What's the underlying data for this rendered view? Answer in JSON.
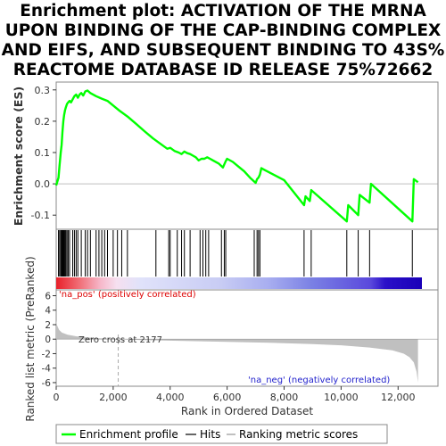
{
  "title_lines": [
    "Enrichment plot: ACTIVATION OF THE MRNA",
    "UPON BINDING OF THE CAP-BINDING COMPLEX",
    "AND EIFS, AND SUBSEQUENT BINDING TO 43S%",
    "REACTOME DATABASE ID RELEASE 75%72662"
  ],
  "colors": {
    "profile": "#00ff00",
    "hits": "#000000",
    "metric_fill": "#c0c0c0",
    "pos_label": "#dd0000",
    "neg_label": "#2222cc"
  },
  "chart_data": {
    "type": "line",
    "xlabel": "Rank in Ordered Dataset",
    "xlim": [
      0,
      13400
    ],
    "x_ticks": [
      0,
      2000,
      4000,
      6000,
      8000,
      10000,
      12000
    ],
    "x_tick_labels": [
      "0",
      "2,000",
      "4,000",
      "6,000",
      "8,000",
      "10,000",
      "12,000"
    ],
    "es_panel": {
      "ylabel": "Enrichment score (ES)",
      "ylim": [
        -0.145,
        0.325
      ],
      "y_ticks": [
        -0.1,
        0.0,
        0.1,
        0.2,
        0.3
      ],
      "y_tick_labels": [
        "-0.1",
        "0.0",
        "0.1",
        "0.2",
        "0.3"
      ],
      "series": [
        {
          "name": "Enrichment profile",
          "x": [
            0,
            80,
            120,
            160,
            190,
            220,
            250,
            280,
            310,
            340,
            380,
            420,
            470,
            520,
            580,
            640,
            700,
            760,
            820,
            880,
            950,
            1020,
            1100,
            1200,
            1400,
            1600,
            1800,
            2000,
            2200,
            2500,
            2800,
            3100,
            3400,
            3700,
            3900,
            4000,
            4150,
            4300,
            4400,
            4500,
            4600,
            4700,
            4800,
            4900,
            5000,
            5100,
            5200,
            5300,
            5400,
            5500,
            5700,
            5850,
            5950,
            6000,
            6200,
            6400,
            6600,
            6800,
            7000,
            7050,
            7100,
            7150,
            7200,
            7300,
            8000,
            8700,
            8750,
            8900,
            8950,
            10200,
            10250,
            10600,
            10650,
            11000,
            11050,
            12500,
            12550,
            12700
          ],
          "y": [
            -0.005,
            0.02,
            0.06,
            0.1,
            0.125,
            0.165,
            0.2,
            0.22,
            0.235,
            0.245,
            0.255,
            0.26,
            0.265,
            0.26,
            0.27,
            0.28,
            0.285,
            0.275,
            0.285,
            0.29,
            0.282,
            0.295,
            0.298,
            0.29,
            0.28,
            0.272,
            0.265,
            0.25,
            0.235,
            0.215,
            0.192,
            0.168,
            0.145,
            0.125,
            0.112,
            0.115,
            0.105,
            0.1,
            0.095,
            0.103,
            0.098,
            0.095,
            0.09,
            0.085,
            0.075,
            0.08,
            0.08,
            0.085,
            0.08,
            0.075,
            0.065,
            0.052,
            0.072,
            0.08,
            0.07,
            0.055,
            0.04,
            0.02,
            0.003,
            0.015,
            0.02,
            0.03,
            0.05,
            0.045,
            0.012,
            -0.068,
            -0.04,
            -0.055,
            -0.02,
            -0.12,
            -0.068,
            -0.1,
            -0.035,
            -0.06,
            0.0,
            -0.12,
            0.015,
            0.005
          ]
        }
      ]
    },
    "hits_panel": {
      "label": "Hits",
      "hit_ranks": [
        80,
        120,
        160,
        190,
        220,
        250,
        280,
        310,
        340,
        380,
        420,
        470,
        580,
        640,
        700,
        760,
        880,
        1020,
        1100,
        1200,
        1400,
        1500,
        1600,
        1700,
        1800,
        2000,
        2150,
        2300,
        2500,
        3500,
        3950,
        4000,
        4250,
        4400,
        4500,
        4700,
        5050,
        5150,
        5250,
        5350,
        5800,
        5900,
        5950,
        6950,
        7050,
        7100,
        7150,
        8700,
        8950,
        10200,
        10600,
        11000,
        12500
      ]
    },
    "metric_panel": {
      "ylabel": "Ranked list metric (PreRanked)",
      "ylim": [
        -6.5,
        6.8
      ],
      "y_ticks": [
        -6,
        -4,
        -2,
        0,
        2,
        4,
        6
      ],
      "y_tick_labels": [
        "-6",
        "-4",
        "-2",
        "0",
        "2",
        "4",
        "6"
      ],
      "zero_cross_rank": 2177,
      "zero_cross_label": "Zero cross at 2177",
      "pos_label": "'na_pos' (positively correlated)",
      "neg_label": "'na_neg' (negatively correlated)",
      "series": [
        {
          "name": "Ranking metric scores",
          "x": [
            0,
            30,
            100,
            200,
            400,
            700,
            1200,
            1800,
            2177,
            3000,
            4500,
            6000,
            7500,
            9000,
            10000,
            11000,
            11800,
            12200,
            12400,
            12550,
            12650,
            12700
          ],
          "y": [
            2.6,
            1.9,
            1.3,
            0.9,
            0.6,
            0.4,
            0.2,
            0.05,
            0.0,
            -0.12,
            -0.25,
            -0.38,
            -0.5,
            -0.68,
            -0.85,
            -1.15,
            -1.55,
            -2.0,
            -2.5,
            -3.2,
            -4.5,
            -6.0
          ]
        }
      ]
    },
    "legend": {
      "placement": "bottom",
      "entries": [
        "Enrichment profile",
        "Hits",
        "Ranking metric scores"
      ]
    }
  }
}
